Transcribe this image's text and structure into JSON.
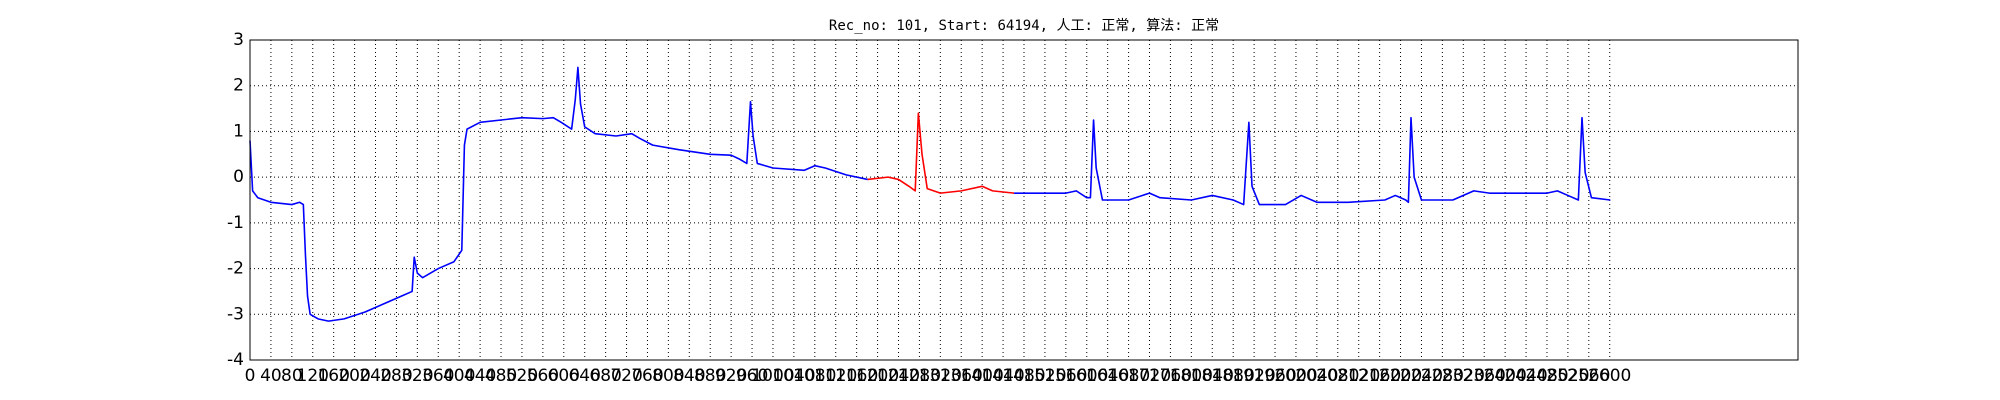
{
  "chart_data": {
    "type": "line",
    "title": "Rec_no: 101, Start: 64194, 人工: 正常, 算法: 正常",
    "x": [
      0,
      5,
      15,
      40,
      80,
      95,
      102,
      106,
      110,
      115,
      130,
      150,
      180,
      220,
      260,
      290,
      310,
      314,
      320,
      330,
      360,
      390,
      405,
      410,
      415,
      440,
      480,
      520,
      560,
      580,
      595,
      615,
      622,
      627,
      632,
      640,
      660,
      700,
      730,
      745,
      770,
      820,
      880,
      920,
      935,
      950,
      957,
      962,
      970,
      1000,
      1060,
      1080,
      1100,
      1140,
      1181,
      1220,
      1240,
      1260,
      1272,
      1278,
      1285,
      1295,
      1320,
      1360,
      1400,
      1420,
      1461,
      1500,
      1560,
      1580,
      1600,
      1607,
      1613,
      1618,
      1630,
      1680,
      1720,
      1740,
      1800,
      1840,
      1880,
      1900,
      1910,
      1916,
      1930,
      1980,
      2010,
      2040,
      2100,
      2170,
      2190,
      2210,
      2215,
      2220,
      2226,
      2240,
      2300,
      2340,
      2370,
      2420,
      2480,
      2500,
      2520,
      2540,
      2547,
      2553,
      2565,
      2601
    ],
    "series": [
      {
        "color": "#0000ff",
        "values": [
          0.8,
          -0.3,
          -0.45,
          -0.55,
          -0.6,
          -0.55,
          -0.6,
          -1.7,
          -2.6,
          -3.0,
          -3.1,
          -3.15,
          -3.1,
          -2.95,
          -2.75,
          -2.6,
          -2.5,
          -1.75,
          -2.1,
          -2.2,
          -2.0,
          -1.85,
          -1.6,
          0.7,
          1.05,
          1.2,
          1.25,
          1.3,
          1.28,
          1.3,
          1.2,
          1.05,
          1.7,
          2.4,
          1.6,
          1.1,
          0.95,
          0.9,
          0.95,
          0.85,
          0.7,
          0.6,
          0.5,
          0.48,
          0.4,
          0.3,
          1.65,
          0.9,
          0.3,
          0.2,
          0.15,
          0.25,
          0.2,
          0.05,
          -0.05,
          null,
          null,
          null,
          null,
          null,
          null,
          null,
          null,
          null,
          null,
          null,
          -0.35,
          -0.35,
          -0.35,
          -0.3,
          -0.45,
          -0.45,
          1.25,
          0.2,
          -0.5,
          -0.5,
          -0.35,
          -0.45,
          -0.5,
          -0.4,
          -0.5,
          -0.6,
          1.2,
          -0.2,
          -0.6,
          -0.6,
          -0.4,
          -0.55,
          -0.55,
          -0.5,
          -0.4,
          -0.5,
          -0.55,
          1.3,
          0.0,
          -0.5,
          -0.5,
          -0.3,
          -0.35,
          -0.35,
          -0.35,
          -0.3,
          -0.4,
          -0.5,
          1.3,
          0.1,
          -0.45,
          -0.5
        ]
      },
      {
        "color": "#ff0000",
        "values": [
          null,
          null,
          null,
          null,
          null,
          null,
          null,
          null,
          null,
          null,
          null,
          null,
          null,
          null,
          null,
          null,
          null,
          null,
          null,
          null,
          null,
          null,
          null,
          null,
          null,
          null,
          null,
          null,
          null,
          null,
          null,
          null,
          null,
          null,
          null,
          null,
          null,
          null,
          null,
          null,
          null,
          null,
          null,
          null,
          null,
          null,
          null,
          null,
          null,
          null,
          null,
          null,
          null,
          null,
          -0.05,
          0.0,
          -0.05,
          -0.2,
          -0.3,
          1.4,
          0.5,
          -0.25,
          -0.35,
          -0.3,
          -0.2,
          -0.3,
          -0.35,
          null,
          null,
          null,
          null,
          null,
          null,
          null,
          null,
          null,
          null,
          null,
          null,
          null,
          null,
          null,
          null,
          null,
          null,
          null,
          null,
          null,
          null,
          null,
          null,
          null,
          null,
          null,
          null,
          null,
          null,
          null,
          null,
          null,
          null,
          null,
          null,
          null,
          null,
          null,
          null,
          null
        ]
      }
    ],
    "xlim": [
      0,
      2960
    ],
    "xticks": [
      0,
      40,
      80,
      120,
      160,
      200,
      240,
      280,
      320,
      360,
      400,
      440,
      480,
      520,
      560,
      600,
      640,
      680,
      720,
      760,
      800,
      840,
      880,
      920,
      960,
      1000,
      1040,
      1080,
      1120,
      1160,
      1200,
      1240,
      1280,
      1320,
      1360,
      1400,
      1440,
      1480,
      1520,
      1560,
      1600,
      1640,
      1680,
      1720,
      1760,
      1800,
      1840,
      1880,
      1920,
      1960,
      2000,
      2040,
      2080,
      2120,
      2160,
      2200,
      2240,
      2280,
      2320,
      2360,
      2400,
      2440,
      2480,
      2520,
      2560,
      2600
    ],
    "ylim": [
      -4,
      3
    ],
    "yticks": [
      -4,
      -3,
      -2,
      -1,
      0,
      1,
      2,
      3
    ],
    "grid": true
  }
}
